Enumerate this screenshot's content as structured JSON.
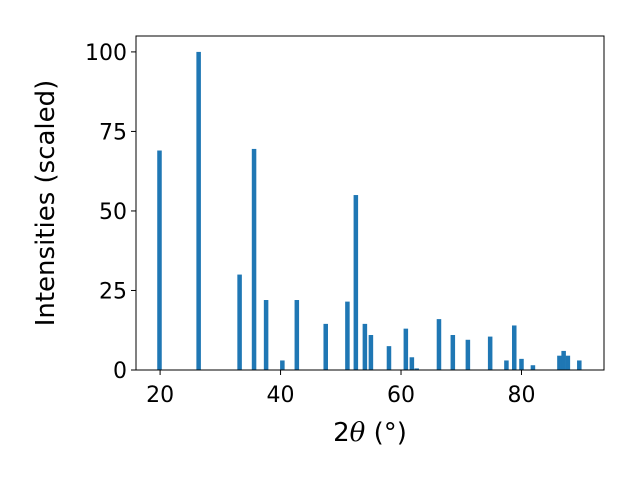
{
  "chart_data": {
    "type": "bar",
    "xlabel_prefix": "2",
    "xlabel_symbol": "θ",
    "xlabel_unit": " (°)",
    "ylabel": "Intensities (scaled)",
    "xlim": [
      16.0,
      93.7
    ],
    "ylim": [
      0,
      105
    ],
    "xticks": [
      20,
      40,
      60,
      80
    ],
    "yticks": [
      0,
      25,
      50,
      75,
      100
    ],
    "bar_color": "#1f77b4",
    "bar_width": 0.75,
    "x": [
      19.9,
      26.4,
      33.2,
      35.6,
      37.6,
      40.3,
      42.7,
      47.5,
      51.1,
      52.5,
      54.0,
      55.0,
      58.0,
      60.8,
      61.8,
      62.6,
      66.3,
      68.6,
      71.1,
      74.8,
      77.5,
      78.8,
      80.0,
      81.9,
      86.3,
      87.0,
      87.7,
      89.6
    ],
    "values": [
      69,
      100,
      30,
      69.5,
      22,
      3,
      22,
      14.5,
      21.5,
      55,
      14.5,
      11,
      7.5,
      13,
      4,
      0.5,
      16,
      11,
      9.5,
      10.5,
      3,
      14,
      3.5,
      1.5,
      4.5,
      6,
      4.5,
      3
    ]
  }
}
